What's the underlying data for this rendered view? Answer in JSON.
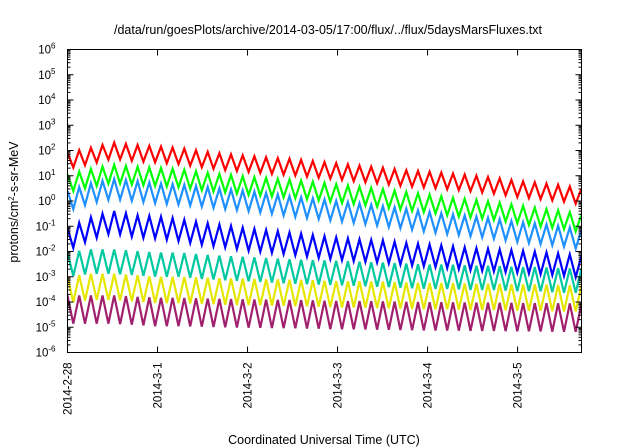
{
  "chart_data": {
    "type": "line",
    "title": "/data/run/goesPlots/archive/2014-03-05/17:00/flux/../flux/5daysMarsFluxes.txt",
    "xlabel": "Coordinated Universal Time (UTC)",
    "ylabel_parts": [
      "protons/cm",
      "2",
      "-s-sr-MeV"
    ],
    "y_scale": "log",
    "ylim": [
      1e-06,
      1000000.0
    ],
    "y_ticks": [
      {
        "base": "10",
        "exp": "-6"
      },
      {
        "base": "10",
        "exp": "-5"
      },
      {
        "base": "10",
        "exp": "-4"
      },
      {
        "base": "10",
        "exp": "-3"
      },
      {
        "base": "10",
        "exp": "-2"
      },
      {
        "base": "10",
        "exp": "-1"
      },
      {
        "base": "10",
        "exp": "0"
      },
      {
        "base": "10",
        "exp": "1"
      },
      {
        "base": "10",
        "exp": "2"
      },
      {
        "base": "10",
        "exp": "3"
      },
      {
        "base": "10",
        "exp": "4"
      },
      {
        "base": "10",
        "exp": "5"
      },
      {
        "base": "10",
        "exp": "6"
      }
    ],
    "xlim": [
      "2014-02-28 00:00",
      "2014-03-05 17:00"
    ],
    "x_ticks": [
      "2014-2-28",
      "2014-3-1",
      "2014-3-2",
      "2014-3-3",
      "2014-3-4",
      "2014-3-5"
    ],
    "grid": false,
    "legend": "none",
    "x_days": [
      0,
      0.25,
      0.5,
      0.75,
      1,
      1.25,
      1.5,
      1.75,
      2,
      2.25,
      2.5,
      2.75,
      3,
      3.25,
      3.5,
      3.75,
      4,
      4.25,
      4.5,
      4.75,
      5,
      5.25,
      5.5,
      5.71
    ],
    "series": [
      {
        "color": "#ff0000",
        "values": [
          40,
          60,
          100,
          80,
          70,
          60,
          45,
          35,
          30,
          25,
          22,
          18,
          15,
          12,
          10,
          8,
          7,
          6,
          5,
          4,
          3,
          2.5,
          2,
          1.5
        ]
      },
      {
        "color": "#00ff00",
        "values": [
          5,
          8,
          12,
          10,
          9,
          8,
          6,
          5,
          4,
          3.5,
          3,
          2.5,
          2,
          1.6,
          1.3,
          1,
          0.8,
          0.6,
          0.5,
          0.4,
          0.3,
          0.22,
          0.18,
          0.13
        ]
      },
      {
        "color": "#1e90ff",
        "values": [
          1,
          2,
          3,
          2.5,
          2,
          1.8,
          1.5,
          1.2,
          1,
          0.8,
          0.6,
          0.5,
          0.4,
          0.32,
          0.25,
          0.2,
          0.15,
          0.12,
          0.1,
          0.08,
          0.06,
          0.05,
          0.04,
          0.03
        ]
      },
      {
        "color": "#0000ff",
        "values": [
          0.03,
          0.08,
          0.15,
          0.1,
          0.09,
          0.07,
          0.05,
          0.04,
          0.03,
          0.025,
          0.02,
          0.016,
          0.013,
          0.011,
          0.01,
          0.008,
          0.007,
          0.006,
          0.005,
          0.0045,
          0.004,
          0.0035,
          0.003,
          0.0025
        ]
      },
      {
        "color": "#00c8a0",
        "values": [
          0.003,
          0.004,
          0.004,
          0.0035,
          0.003,
          0.003,
          0.0025,
          0.0022,
          0.002,
          0.0018,
          0.0016,
          0.0015,
          0.0014,
          0.0013,
          0.0012,
          0.0011,
          0.001,
          0.001,
          0.0009,
          0.0009,
          0.0008,
          0.0008,
          0.0007,
          0.0007
        ]
      },
      {
        "color": "#e6e600",
        "values": [
          0.0003,
          0.0004,
          0.0004,
          0.00035,
          0.0003,
          0.0003,
          0.00028,
          0.00026,
          0.00025,
          0.00024,
          0.00023,
          0.00022,
          0.0002,
          0.0002,
          0.00019,
          0.00018,
          0.00017,
          0.00017,
          0.00016,
          0.00016,
          0.00015,
          0.00015,
          0.00014,
          0.00014
        ]
      },
      {
        "color": "#a0206e",
        "values": [
          5e-05,
          5e-05,
          5e-05,
          4.5e-05,
          4e-05,
          4e-05,
          3.8e-05,
          3.6e-05,
          3.5e-05,
          3.4e-05,
          3.3e-05,
          3.2e-05,
          3e-05,
          3e-05,
          2.9e-05,
          2.8e-05,
          2.7e-05,
          2.7e-05,
          2.6e-05,
          2.6e-05,
          2.5e-05,
          2.5e-05,
          2.4e-05,
          2.4e-05
        ]
      }
    ]
  }
}
